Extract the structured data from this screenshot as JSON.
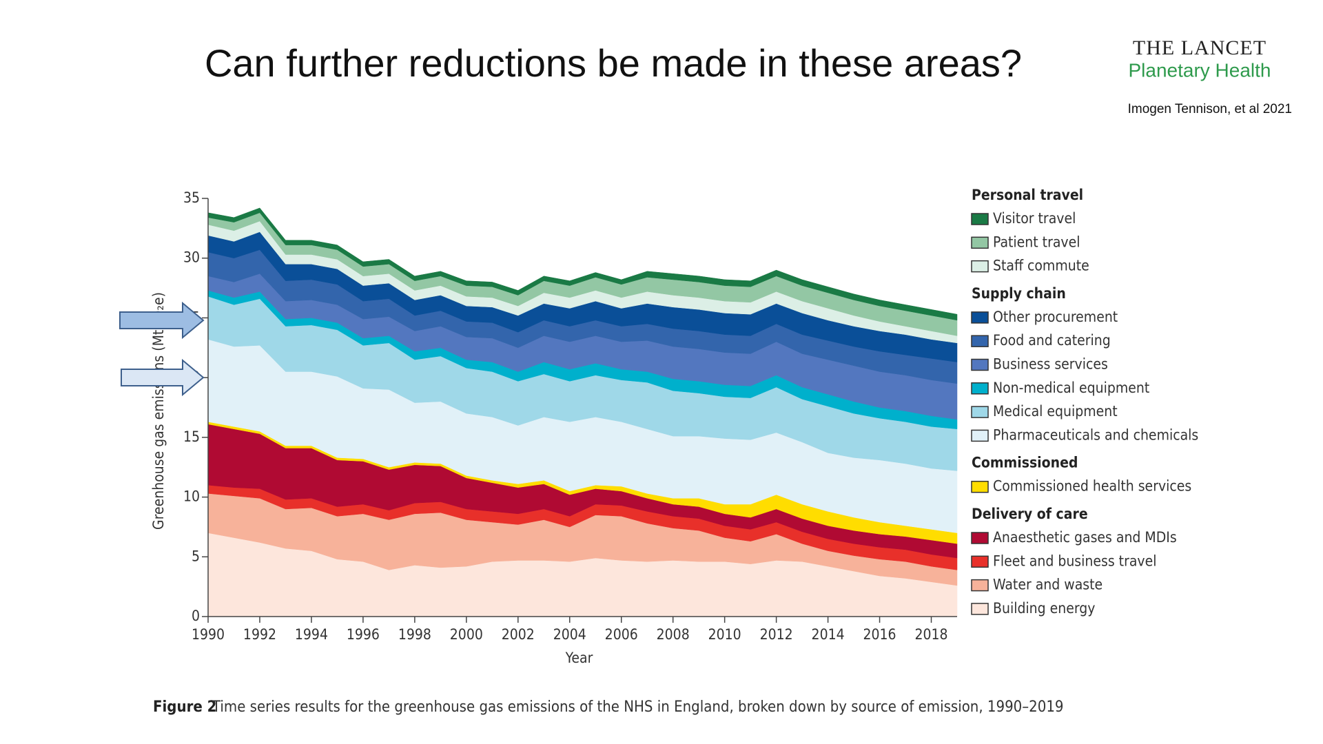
{
  "header": {
    "title": "Can further reductions be made in these areas?",
    "journal_line1": "THE LANCET",
    "journal_line2": "Planetary Health",
    "citation": "Imogen Tennison, et al 2021"
  },
  "chart_data": {
    "type": "stacked-area",
    "x_label": "Year",
    "y_label": "Greenhouse gas emissions (MtCO₂e)",
    "caption_label": "Figure 2",
    "caption": "Time series results for the greenhouse gas emissions of the NHS in England, broken down by source of emission, 1990–2019",
    "x": [
      1990,
      1991,
      1992,
      1993,
      1994,
      1995,
      1996,
      1997,
      1998,
      1999,
      2000,
      2001,
      2002,
      2003,
      2004,
      2005,
      2006,
      2007,
      2008,
      2009,
      2010,
      2011,
      2012,
      2013,
      2014,
      2015,
      2016,
      2017,
      2018,
      2019
    ],
    "xlim": [
      1990,
      2019
    ],
    "xticks": [
      1990,
      1992,
      1994,
      1996,
      1998,
      2000,
      2002,
      2004,
      2006,
      2008,
      2010,
      2012,
      2014,
      2016,
      2018
    ],
    "ylim": [
      0,
      35
    ],
    "yticks": [
      0,
      5,
      10,
      15,
      20,
      25,
      30,
      35
    ],
    "series": [
      {
        "group": "Personal travel",
        "name": "Visitor travel",
        "color": "#1a7a45",
        "values": [
          0.4,
          0.4,
          0.4,
          0.4,
          0.4,
          0.4,
          0.4,
          0.4,
          0.4,
          0.4,
          0.4,
          0.4,
          0.4,
          0.4,
          0.4,
          0.4,
          0.4,
          0.5,
          0.5,
          0.5,
          0.5,
          0.5,
          0.5,
          0.5,
          0.5,
          0.5,
          0.5,
          0.5,
          0.5,
          0.5
        ]
      },
      {
        "group": "Personal travel",
        "name": "Patient travel",
        "color": "#93c7a4",
        "values": [
          0.6,
          0.7,
          0.7,
          0.8,
          0.8,
          0.8,
          0.8,
          0.8,
          0.8,
          0.8,
          0.9,
          0.9,
          0.9,
          1.0,
          1.0,
          1.1,
          1.1,
          1.2,
          1.3,
          1.3,
          1.3,
          1.3,
          1.3,
          1.3,
          1.3,
          1.3,
          1.3,
          1.3,
          1.3,
          1.3
        ]
      },
      {
        "group": "Personal travel",
        "name": "Staff commute",
        "color": "#dcefe6",
        "values": [
          0.9,
          0.9,
          0.9,
          0.8,
          0.8,
          0.8,
          0.8,
          0.8,
          0.8,
          0.8,
          0.8,
          0.8,
          0.8,
          0.9,
          0.9,
          0.9,
          0.9,
          1.0,
          1.0,
          1.0,
          1.0,
          1.0,
          1.0,
          1.0,
          1.0,
          0.9,
          0.8,
          0.7,
          0.7,
          0.6
        ]
      },
      {
        "group": "Supply chain",
        "name": "Other procurement",
        "color": "#0a4f98",
        "values": [
          1.4,
          1.4,
          1.5,
          1.4,
          1.3,
          1.3,
          1.3,
          1.3,
          1.3,
          1.3,
          1.3,
          1.3,
          1.4,
          1.4,
          1.5,
          1.6,
          1.5,
          1.7,
          1.8,
          1.8,
          1.8,
          1.8,
          1.7,
          1.8,
          1.7,
          1.7,
          1.7,
          1.7,
          1.6,
          1.6
        ]
      },
      {
        "group": "Supply chain",
        "name": "Food and catering",
        "color": "#3365ac",
        "values": [
          2.0,
          2.0,
          2.0,
          1.7,
          1.7,
          1.7,
          1.5,
          1.5,
          1.3,
          1.3,
          1.3,
          1.3,
          1.3,
          1.3,
          1.3,
          1.3,
          1.3,
          1.4,
          1.5,
          1.5,
          1.5,
          1.5,
          1.5,
          1.6,
          1.6,
          1.6,
          1.7,
          1.7,
          1.8,
          1.8
        ]
      },
      {
        "group": "Supply chain",
        "name": "Business services",
        "color": "#5377bf",
        "values": [
          1.2,
          1.3,
          1.5,
          1.5,
          1.5,
          1.5,
          1.6,
          1.6,
          1.7,
          1.8,
          1.9,
          2.0,
          2.0,
          2.2,
          2.3,
          2.3,
          2.3,
          2.6,
          2.7,
          2.7,
          2.7,
          2.7,
          2.8,
          2.8,
          2.9,
          3.0,
          3.0,
          3.0,
          3.0,
          3.0
        ]
      },
      {
        "group": "Supply chain",
        "name": "Non-medical equipment",
        "color": "#00b0cc",
        "values": [
          0.5,
          0.6,
          0.6,
          0.6,
          0.6,
          0.6,
          0.6,
          0.6,
          0.7,
          0.7,
          0.7,
          0.8,
          0.8,
          1.0,
          1.0,
          1.0,
          0.9,
          0.9,
          1.0,
          1.0,
          1.0,
          1.0,
          1.0,
          1.0,
          1.0,
          1.0,
          0.9,
          0.9,
          0.9,
          0.8
        ]
      },
      {
        "group": "Supply chain",
        "name": "Medical equipment",
        "color": "#9fd8e8",
        "values": [
          3.6,
          3.5,
          3.9,
          3.8,
          3.9,
          3.9,
          3.6,
          3.9,
          3.6,
          3.8,
          3.8,
          3.8,
          3.7,
          3.6,
          3.4,
          3.5,
          3.5,
          3.9,
          3.8,
          3.6,
          3.5,
          3.5,
          3.8,
          3.6,
          3.9,
          3.7,
          3.5,
          3.5,
          3.5,
          3.5
        ]
      },
      {
        "group": "Supply chain",
        "name": "Pharmaceuticals and chemicals",
        "color": "#e1f1f8",
        "values": [
          6.9,
          6.7,
          7.2,
          6.2,
          6.2,
          6.8,
          5.9,
          6.5,
          5.0,
          5.2,
          5.2,
          5.3,
          4.9,
          5.3,
          5.8,
          5.7,
          5.4,
          5.4,
          5.2,
          5.2,
          5.5,
          5.4,
          5.2,
          5.2,
          4.9,
          5.0,
          5.2,
          5.2,
          5.1,
          5.2
        ]
      },
      {
        "group": "Commissioned",
        "name": "Commissioned health services",
        "color": "#ffdd00",
        "values": [
          0.2,
          0.2,
          0.2,
          0.2,
          0.2,
          0.2,
          0.2,
          0.2,
          0.2,
          0.2,
          0.2,
          0.2,
          0.3,
          0.3,
          0.3,
          0.3,
          0.4,
          0.4,
          0.5,
          0.7,
          0.8,
          1.1,
          1.2,
          1.2,
          1.2,
          1.1,
          1.0,
          0.9,
          0.9,
          0.9
        ]
      },
      {
        "group": "Delivery of care",
        "name": "Anaesthetic gases and MDIs",
        "color": "#b00a33",
        "values": [
          5.1,
          4.9,
          4.6,
          4.3,
          4.2,
          3.9,
          3.6,
          3.4,
          3.2,
          3.0,
          2.6,
          2.4,
          2.2,
          2.1,
          1.8,
          1.3,
          1.2,
          1.1,
          1.0,
          1.0,
          1.0,
          1.0,
          1.1,
          1.1,
          1.1,
          1.1,
          1.1,
          1.1,
          1.2,
          1.2
        ]
      },
      {
        "group": "Delivery of care",
        "name": "Fleet and business travel",
        "color": "#e8302a",
        "values": [
          0.7,
          0.7,
          0.8,
          0.8,
          0.8,
          0.8,
          0.8,
          0.8,
          0.9,
          0.9,
          0.9,
          0.9,
          0.9,
          0.9,
          0.9,
          0.9,
          0.9,
          1.0,
          1.0,
          1.0,
          1.0,
          1.0,
          1.0,
          1.0,
          1.0,
          1.0,
          1.0,
          1.0,
          1.0,
          1.0
        ]
      },
      {
        "group": "Delivery of care",
        "name": "Water and waste",
        "color": "#f7b29a",
        "values": [
          3.3,
          3.5,
          3.7,
          3.3,
          3.6,
          3.6,
          4.0,
          4.2,
          4.3,
          4.6,
          3.9,
          3.3,
          3.0,
          3.4,
          2.9,
          3.6,
          3.7,
          3.2,
          2.7,
          2.6,
          2.0,
          1.9,
          2.2,
          1.5,
          1.3,
          1.3,
          1.4,
          1.4,
          1.3,
          1.3
        ]
      },
      {
        "group": "Delivery of care",
        "name": "Building energy",
        "color": "#fde6dc",
        "values": [
          7.0,
          6.6,
          6.2,
          5.7,
          5.5,
          4.8,
          4.6,
          3.9,
          4.3,
          4.1,
          4.2,
          4.6,
          4.7,
          4.7,
          4.6,
          4.9,
          4.7,
          4.6,
          4.7,
          4.6,
          4.6,
          4.4,
          4.7,
          4.6,
          4.2,
          3.8,
          3.4,
          3.2,
          2.9,
          2.6
        ]
      }
    ]
  }
}
